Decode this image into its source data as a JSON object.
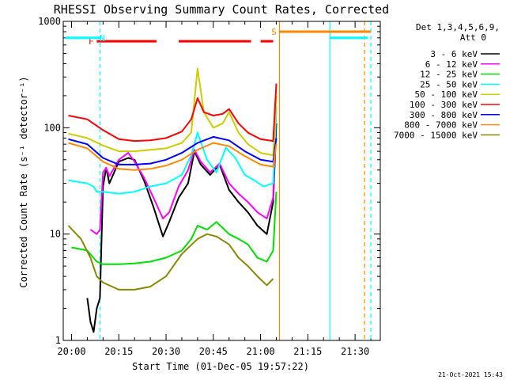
{
  "chart_data": {
    "type": "line",
    "title": "RHESSI Observing Summary Count Rates, Corrected",
    "ylabel": "Corrected Count Rate (s⁻¹ detector⁻¹)",
    "xlabel": "Start Time (01-Dec-05 19:57:22)",
    "x_scale": "time",
    "y_scale": "log",
    "xlim": [
      "19:57:22",
      "21:38:00"
    ],
    "ylim": [
      1,
      1000
    ],
    "xticks": [
      "20:00",
      "20:15",
      "20:30",
      "20:45",
      "21:00",
      "21:15",
      "21:30"
    ],
    "yticks": [
      "1",
      "10",
      "100",
      "1000"
    ],
    "legend": {
      "position": "outside-right",
      "header": [
        "Det 1,3,4,5,6,9,",
        "Att 0"
      ]
    },
    "series": [
      {
        "name": "3 - 6 keV",
        "color": "#000000",
        "x": [
          "20:05",
          "20:06",
          "20:07",
          "20:08",
          "20:09",
          "20:10",
          "20:11",
          "20:12",
          "20:15",
          "20:18",
          "20:20",
          "20:23",
          "20:26",
          "20:29",
          "20:31",
          "20:34",
          "20:37",
          "20:39",
          "20:41",
          "20:44",
          "20:47",
          "20:50",
          "20:53",
          "20:56",
          "20:59",
          "21:02",
          "21:04",
          "21:05"
        ],
        "y": [
          2.5,
          1.5,
          1.2,
          2,
          2.5,
          28,
          42,
          30,
          48,
          52,
          50,
          32,
          18,
          9.5,
          13,
          22,
          30,
          60,
          45,
          36,
          45,
          26,
          20,
          16,
          12,
          10,
          20,
          110
        ]
      },
      {
        "name": "6 - 12 keV",
        "color": "#ff00ff",
        "x": [
          "20:06",
          "20:08",
          "20:09",
          "20:10",
          "20:11",
          "20:12",
          "20:15",
          "20:18",
          "20:20",
          "20:23",
          "20:26",
          "20:29",
          "20:31",
          "20:34",
          "20:37",
          "20:39",
          "20:41",
          "20:44",
          "20:47",
          "20:50",
          "20:53",
          "20:56",
          "20:59",
          "21:02",
          "21:04",
          "21:05"
        ],
        "y": [
          11,
          10,
          11,
          38,
          42,
          35,
          50,
          58,
          48,
          34,
          22,
          14,
          16,
          28,
          40,
          62,
          48,
          38,
          46,
          30,
          24,
          20,
          16,
          14,
          22,
          160
        ]
      },
      {
        "name": "12 - 25 keV",
        "color": "#00dd00",
        "x": [
          "20:00",
          "20:05",
          "20:08",
          "20:10",
          "20:15",
          "20:20",
          "20:25",
          "20:30",
          "20:35",
          "20:38",
          "20:40",
          "20:43",
          "20:46",
          "20:50",
          "20:53",
          "20:56",
          "20:59",
          "21:02",
          "21:04",
          "21:05"
        ],
        "y": [
          7.5,
          7,
          5.5,
          5.2,
          5.2,
          5.3,
          5.5,
          6,
          7,
          9,
          12,
          11,
          13,
          10,
          9,
          8,
          6,
          5.5,
          7,
          25
        ]
      },
      {
        "name": "25 - 50 keV",
        "color": "#00ffff",
        "x": [
          "19:59",
          "20:05",
          "20:07",
          "20:08",
          "20:10",
          "20:15",
          "20:20",
          "20:25",
          "20:30",
          "20:35",
          "20:38",
          "20:40",
          "20:43",
          "20:46",
          "20:49",
          "20:52",
          "20:55",
          "20:58",
          "21:01",
          "21:04",
          "21:05"
        ],
        "y": [
          32,
          30,
          28,
          25,
          25,
          24,
          25,
          28,
          30,
          36,
          55,
          90,
          50,
          38,
          65,
          52,
          36,
          32,
          28,
          30,
          160
        ]
      },
      {
        "name": "50 - 100 keV",
        "color": "#cccc00",
        "x": [
          "19:59",
          "20:05",
          "20:10",
          "20:15",
          "20:20",
          "20:25",
          "20:30",
          "20:35",
          "20:38",
          "20:40",
          "20:42",
          "20:45",
          "20:48",
          "20:50",
          "20:53",
          "20:56",
          "21:00",
          "21:04",
          "21:05"
        ],
        "y": [
          88,
          80,
          68,
          60,
          60,
          62,
          64,
          72,
          90,
          360,
          140,
          100,
          110,
          140,
          90,
          70,
          58,
          55,
          200
        ]
      },
      {
        "name": "100 - 300 keV",
        "color": "#ff0000",
        "x": [
          "19:59",
          "20:05",
          "20:10",
          "20:15",
          "20:20",
          "20:25",
          "20:30",
          "20:35",
          "20:38",
          "20:40",
          "20:42",
          "20:45",
          "20:48",
          "20:50",
          "20:53",
          "20:56",
          "21:00",
          "21:04",
          "21:05"
        ],
        "y": [
          130,
          120,
          95,
          78,
          75,
          76,
          80,
          92,
          120,
          190,
          140,
          130,
          135,
          150,
          110,
          90,
          78,
          75,
          260
        ]
      },
      {
        "name": "300 - 800 keV",
        "color": "#0000ff",
        "x": [
          "19:59",
          "20:05",
          "20:10",
          "20:15",
          "20:20",
          "20:25",
          "20:30",
          "20:35",
          "20:40",
          "20:45",
          "20:50",
          "20:55",
          "21:00",
          "21:04",
          "21:05"
        ],
        "y": [
          78,
          70,
          52,
          45,
          45,
          46,
          50,
          58,
          72,
          82,
          76,
          60,
          50,
          48,
          80
        ]
      },
      {
        "name": "800 - 7000 keV",
        "color": "#ff8800",
        "x": [
          "19:59",
          "20:05",
          "20:10",
          "20:15",
          "20:20",
          "20:25",
          "20:30",
          "20:35",
          "20:40",
          "20:45",
          "20:50",
          "20:55",
          "21:00",
          "21:04",
          "21:05"
        ],
        "y": [
          72,
          64,
          48,
          41,
          40,
          41,
          44,
          50,
          62,
          72,
          67,
          54,
          45,
          43,
          70
        ]
      },
      {
        "name": "7000 - 15000 keV",
        "color": "#888800",
        "x": [
          "19:59",
          "20:03",
          "20:06",
          "20:08",
          "20:10",
          "20:15",
          "20:20",
          "20:25",
          "20:30",
          "20:35",
          "20:40",
          "20:43",
          "20:46",
          "20:50",
          "20:53",
          "20:56",
          "20:59",
          "21:02",
          "21:04"
        ],
        "y": [
          12,
          9,
          6,
          4,
          3.5,
          3,
          3,
          3.2,
          4,
          6.5,
          9,
          10,
          9.5,
          8,
          6,
          5,
          4,
          3.3,
          3.8
        ]
      }
    ],
    "flag_bars": [
      {
        "label": "F",
        "color": "#ff0000",
        "y": 650,
        "segments": [
          [
            "20:08",
            "20:27"
          ],
          [
            "20:34",
            "20:57"
          ],
          [
            "21:00",
            "21:04"
          ]
        ]
      },
      {
        "label": "S",
        "color": "#ff8800",
        "y": 800,
        "segments": [
          [
            "21:06",
            "21:35"
          ]
        ]
      },
      {
        "label": "N",
        "color": "#00ffff",
        "y": 700,
        "segments": [
          [
            "19:58",
            "20:09"
          ],
          [
            "21:22",
            "21:34"
          ]
        ]
      }
    ],
    "vertical_lines": [
      {
        "x": "20:09",
        "color": "#00ffff",
        "dashed": true
      },
      {
        "x": "21:06",
        "color": "#ff8800",
        "dashed": false
      },
      {
        "x": "21:22",
        "color": "#00ffff",
        "dashed": false
      },
      {
        "x": "21:33",
        "color": "#ff8800",
        "dashed": true
      },
      {
        "x": "21:35",
        "color": "#00ffff",
        "dashed": true
      }
    ],
    "timestamp": "21-Oct-2021 15:43"
  }
}
